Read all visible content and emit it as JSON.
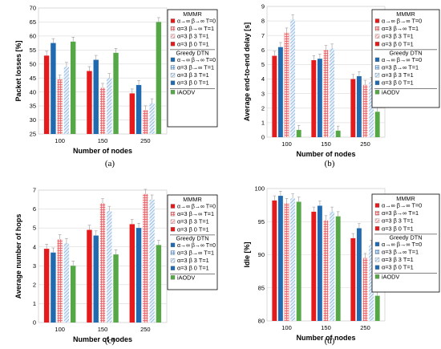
{
  "colors": {
    "mmmr_inf": "#e41a1c",
    "mmmr_a3_b1": "#f6a4a7",
    "mmmr_a3_b3": "#f3b6b8",
    "mmmr_a3_b0": "#e41a1c",
    "gdtn_inf": "#1f6ab0",
    "gdtn_a3_b1": "#9fc3e7",
    "gdtn_a3_b3": "#b5d2ee",
    "gdtn_a3_b0": "#1f6ab0",
    "iaodv": "#55a845"
  },
  "legend": {
    "mmmr_title": "MMMR",
    "gdtn_title": "Greedy DTN",
    "entries": [
      {
        "label": "α→∞ β→∞ T=0",
        "color_key": "mmmr_inf",
        "pattern": "solid"
      },
      {
        "label": "α=3 β→∞ T=1",
        "color_key": "mmmr_a3_b1",
        "pattern": "grid"
      },
      {
        "label": "α=3 β 3 T=1",
        "color_key": "mmmr_a3_b3",
        "pattern": "hatch"
      },
      {
        "label": "α=3 β 0 T=1",
        "color_key": "mmmr_a3_b0",
        "pattern": "solid"
      },
      {
        "label": "α→∞ β→∞ T=0",
        "color_key": "gdtn_inf",
        "pattern": "solid"
      },
      {
        "label": "α=3 β→∞ T=1",
        "color_key": "gdtn_a3_b1",
        "pattern": "grid"
      },
      {
        "label": "α=3 β 3 T=1",
        "color_key": "gdtn_a3_b3",
        "pattern": "hatch"
      },
      {
        "label": "α=3 β 0 T=1",
        "color_key": "gdtn_a3_b0",
        "pattern": "solid"
      },
      {
        "label": "iAODV",
        "color_key": "iaodv",
        "pattern": "solid"
      }
    ]
  },
  "chart_data": [
    {
      "type": "bar",
      "caption": "(a)",
      "xlabel": "Number of nodes",
      "ylabel": "Packet losses [%]",
      "categories": [
        "100",
        "150",
        "250"
      ],
      "ylim": [
        25,
        70
      ],
      "yticks": [
        25,
        30,
        35,
        40,
        45,
        50,
        55,
        60,
        65,
        70
      ],
      "grid": true,
      "legend_position": "right",
      "series_values": [
        [
          53,
          47.5,
          39.5
        ],
        [
          57.5,
          51.5,
          42.5
        ],
        [
          44.5,
          41.5,
          33.5
        ],
        [
          49,
          45,
          36
        ],
        [
          58,
          54,
          65
        ]
      ]
    },
    {
      "type": "bar",
      "caption": "(b)",
      "xlabel": "Number of nodes",
      "ylabel": "Average end-to-end delay [s]",
      "categories": [
        "100",
        "150",
        "250"
      ],
      "ylim": [
        0,
        9
      ],
      "yticks": [
        0,
        1,
        2,
        3,
        4,
        5,
        6,
        7,
        8,
        9
      ],
      "grid": true,
      "legend_position": "right",
      "series_values": [
        [
          5.6,
          5.3,
          4.0
        ],
        [
          6.2,
          5.4,
          4.2
        ],
        [
          7.2,
          6.0,
          3.6
        ],
        [
          8.1,
          6.1,
          3.8
        ],
        [
          0.5,
          0.45,
          1.75
        ]
      ]
    },
    {
      "type": "bar",
      "caption": "(c)",
      "xlabel": "Number of nodes",
      "ylabel": "Average number of hops",
      "categories": [
        "100",
        "150",
        "250"
      ],
      "ylim": [
        0,
        7
      ],
      "yticks": [
        0,
        1,
        2,
        3,
        4,
        5,
        6,
        7
      ],
      "grid": true,
      "legend_position": "right",
      "series_values": [
        [
          3.9,
          4.9,
          5.2
        ],
        [
          3.7,
          4.6,
          5.0
        ],
        [
          4.4,
          6.3,
          6.8
        ],
        [
          4.2,
          5.9,
          6.5
        ],
        [
          3.0,
          3.6,
          4.1
        ]
      ]
    },
    {
      "type": "bar",
      "caption": "(d)",
      "xlabel": "Number of nodes",
      "ylabel": "Idle [%]",
      "categories": [
        "100",
        "150",
        "250"
      ],
      "ylim": [
        80,
        100
      ],
      "yticks": [
        80,
        85,
        90,
        95,
        100
      ],
      "grid": true,
      "legend_position": "right",
      "series_values": [
        [
          98.2,
          96.5,
          92.5
        ],
        [
          98.9,
          97.4,
          94.0
        ],
        [
          97.8,
          95.2,
          89.5
        ],
        [
          98.5,
          96.5,
          91.5
        ],
        [
          98.0,
          95.8,
          83.8
        ]
      ]
    }
  ]
}
